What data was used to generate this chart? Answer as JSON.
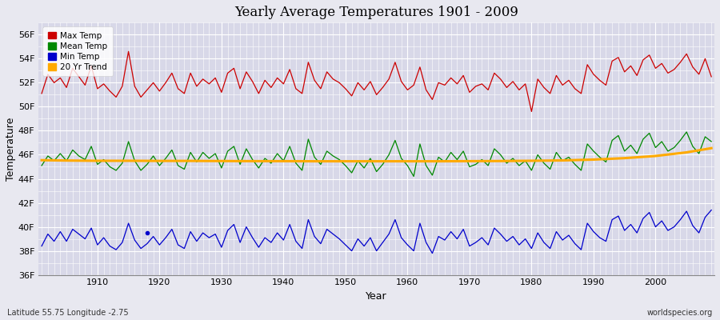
{
  "title": "Yearly Average Temperatures 1901 - 2009",
  "xlabel": "Year",
  "ylabel": "Temperature",
  "x_start": 1901,
  "x_end": 2009,
  "yticks": [
    36,
    38,
    40,
    42,
    44,
    46,
    48,
    50,
    52,
    54,
    56
  ],
  "ytick_labels": [
    "36F",
    "38F",
    "40F",
    "42F",
    "44F",
    "46F",
    "48F",
    "50F",
    "52F",
    "54F",
    "56F"
  ],
  "xticks": [
    1910,
    1920,
    1930,
    1940,
    1950,
    1960,
    1970,
    1980,
    1990,
    2000
  ],
  "ylim": [
    36,
    57
  ],
  "xlim": [
    1900.5,
    2009.5
  ],
  "bg_color": "#e8e8f0",
  "plot_bg_color": "#d8d8e8",
  "grid_color": "#ffffff",
  "max_color": "#cc0000",
  "mean_color": "#008800",
  "min_color": "#0000cc",
  "trend_color": "#ffaa00",
  "legend_labels": [
    "Max Temp",
    "Mean Temp",
    "Min Temp",
    "20 Yr Trend"
  ],
  "footer_left": "Latitude 55.75 Longitude -2.75",
  "footer_right": "worldspecies.org",
  "max_temps": [
    51.1,
    52.7,
    52.0,
    52.4,
    51.6,
    53.2,
    52.5,
    51.8,
    53.4,
    51.5,
    51.9,
    51.3,
    50.8,
    51.7,
    54.6,
    51.7,
    50.8,
    51.4,
    52.0,
    51.3,
    52.0,
    52.8,
    51.5,
    51.1,
    52.8,
    51.7,
    52.3,
    51.9,
    52.4,
    51.2,
    52.8,
    53.2,
    51.5,
    52.9,
    52.1,
    51.1,
    52.2,
    51.6,
    52.4,
    51.9,
    53.1,
    51.5,
    51.1,
    53.7,
    52.2,
    51.5,
    52.9,
    52.3,
    52.0,
    51.5,
    50.9,
    52.0,
    51.4,
    52.1,
    51.0,
    51.6,
    52.3,
    53.7,
    52.1,
    51.4,
    51.8,
    53.3,
    51.4,
    50.6,
    52.0,
    51.8,
    52.4,
    51.9,
    52.6,
    51.2,
    51.7,
    51.9,
    51.4,
    52.8,
    52.3,
    51.6,
    52.1,
    51.4,
    51.9,
    49.6,
    52.3,
    51.6,
    51.1,
    52.6,
    51.8,
    52.2,
    51.5,
    51.1,
    53.5,
    52.7,
    52.2,
    51.8,
    53.8,
    54.1,
    52.9,
    53.4,
    52.6,
    53.9,
    54.3,
    53.2,
    53.6,
    52.8,
    53.1,
    53.7,
    54.4,
    53.3,
    52.7,
    54.0,
    52.5
  ],
  "mean_temps": [
    45.1,
    45.9,
    45.5,
    46.1,
    45.5,
    46.4,
    45.9,
    45.6,
    46.7,
    45.2,
    45.6,
    45.0,
    44.7,
    45.3,
    47.1,
    45.5,
    44.7,
    45.2,
    45.9,
    45.1,
    45.7,
    46.4,
    45.1,
    44.8,
    46.2,
    45.4,
    46.2,
    45.7,
    46.1,
    44.9,
    46.3,
    46.7,
    45.2,
    46.5,
    45.6,
    44.9,
    45.7,
    45.3,
    46.1,
    45.5,
    46.7,
    45.3,
    44.7,
    47.3,
    45.8,
    45.2,
    46.3,
    45.9,
    45.6,
    45.1,
    44.5,
    45.5,
    44.9,
    45.7,
    44.6,
    45.2,
    46.0,
    47.2,
    45.7,
    45.1,
    44.2,
    46.9,
    45.1,
    44.3,
    45.8,
    45.4,
    46.2,
    45.6,
    46.3,
    45.0,
    45.2,
    45.6,
    45.1,
    46.5,
    46.0,
    45.3,
    45.7,
    45.1,
    45.5,
    44.7,
    46.0,
    45.3,
    44.8,
    46.2,
    45.5,
    45.8,
    45.2,
    44.7,
    46.9,
    46.3,
    45.8,
    45.4,
    47.2,
    47.6,
    46.3,
    46.8,
    46.1,
    47.3,
    47.8,
    46.6,
    47.1,
    46.3,
    46.6,
    47.2,
    47.9,
    46.7,
    46.1,
    47.5,
    47.1
  ],
  "min_temps": [
    38.4,
    39.4,
    38.8,
    39.6,
    38.8,
    39.8,
    39.4,
    39.0,
    39.9,
    38.5,
    39.1,
    38.4,
    38.1,
    38.7,
    40.3,
    38.9,
    38.2,
    38.6,
    39.2,
    38.5,
    39.1,
    39.8,
    38.5,
    38.2,
    39.6,
    38.8,
    39.5,
    39.1,
    39.4,
    38.3,
    39.7,
    40.2,
    38.7,
    40.0,
    39.1,
    38.3,
    39.1,
    38.7,
    39.5,
    38.9,
    40.2,
    38.8,
    38.2,
    40.6,
    39.2,
    38.6,
    39.8,
    39.4,
    39.0,
    38.5,
    38.0,
    39.0,
    38.4,
    39.1,
    38.0,
    38.7,
    39.4,
    40.6,
    39.1,
    38.5,
    38.0,
    40.3,
    38.7,
    37.8,
    39.2,
    38.9,
    39.6,
    39.0,
    39.8,
    38.4,
    38.7,
    39.1,
    38.5,
    39.9,
    39.4,
    38.8,
    39.2,
    38.5,
    39.0,
    38.2,
    39.5,
    38.7,
    38.2,
    39.6,
    38.9,
    39.3,
    38.6,
    38.1,
    40.3,
    39.6,
    39.1,
    38.8,
    40.6,
    40.9,
    39.7,
    40.2,
    39.5,
    40.7,
    41.2,
    40.0,
    40.5,
    39.7,
    40.0,
    40.6,
    41.3,
    40.1,
    39.5,
    40.8,
    41.4
  ],
  "dot_year": 1918,
  "dot_temp": 39.5,
  "trend_x": [
    1901,
    1905,
    1910,
    1915,
    1920,
    1925,
    1930,
    1935,
    1940,
    1945,
    1950,
    1955,
    1960,
    1965,
    1970,
    1975,
    1980,
    1985,
    1990,
    1995,
    2000,
    2005,
    2009
  ],
  "trend_y": [
    45.55,
    45.52,
    45.5,
    45.5,
    45.49,
    45.49,
    45.48,
    45.47,
    45.47,
    45.46,
    45.46,
    45.46,
    45.46,
    45.46,
    45.47,
    45.48,
    45.5,
    45.53,
    45.6,
    45.72,
    45.9,
    46.2,
    46.55
  ]
}
